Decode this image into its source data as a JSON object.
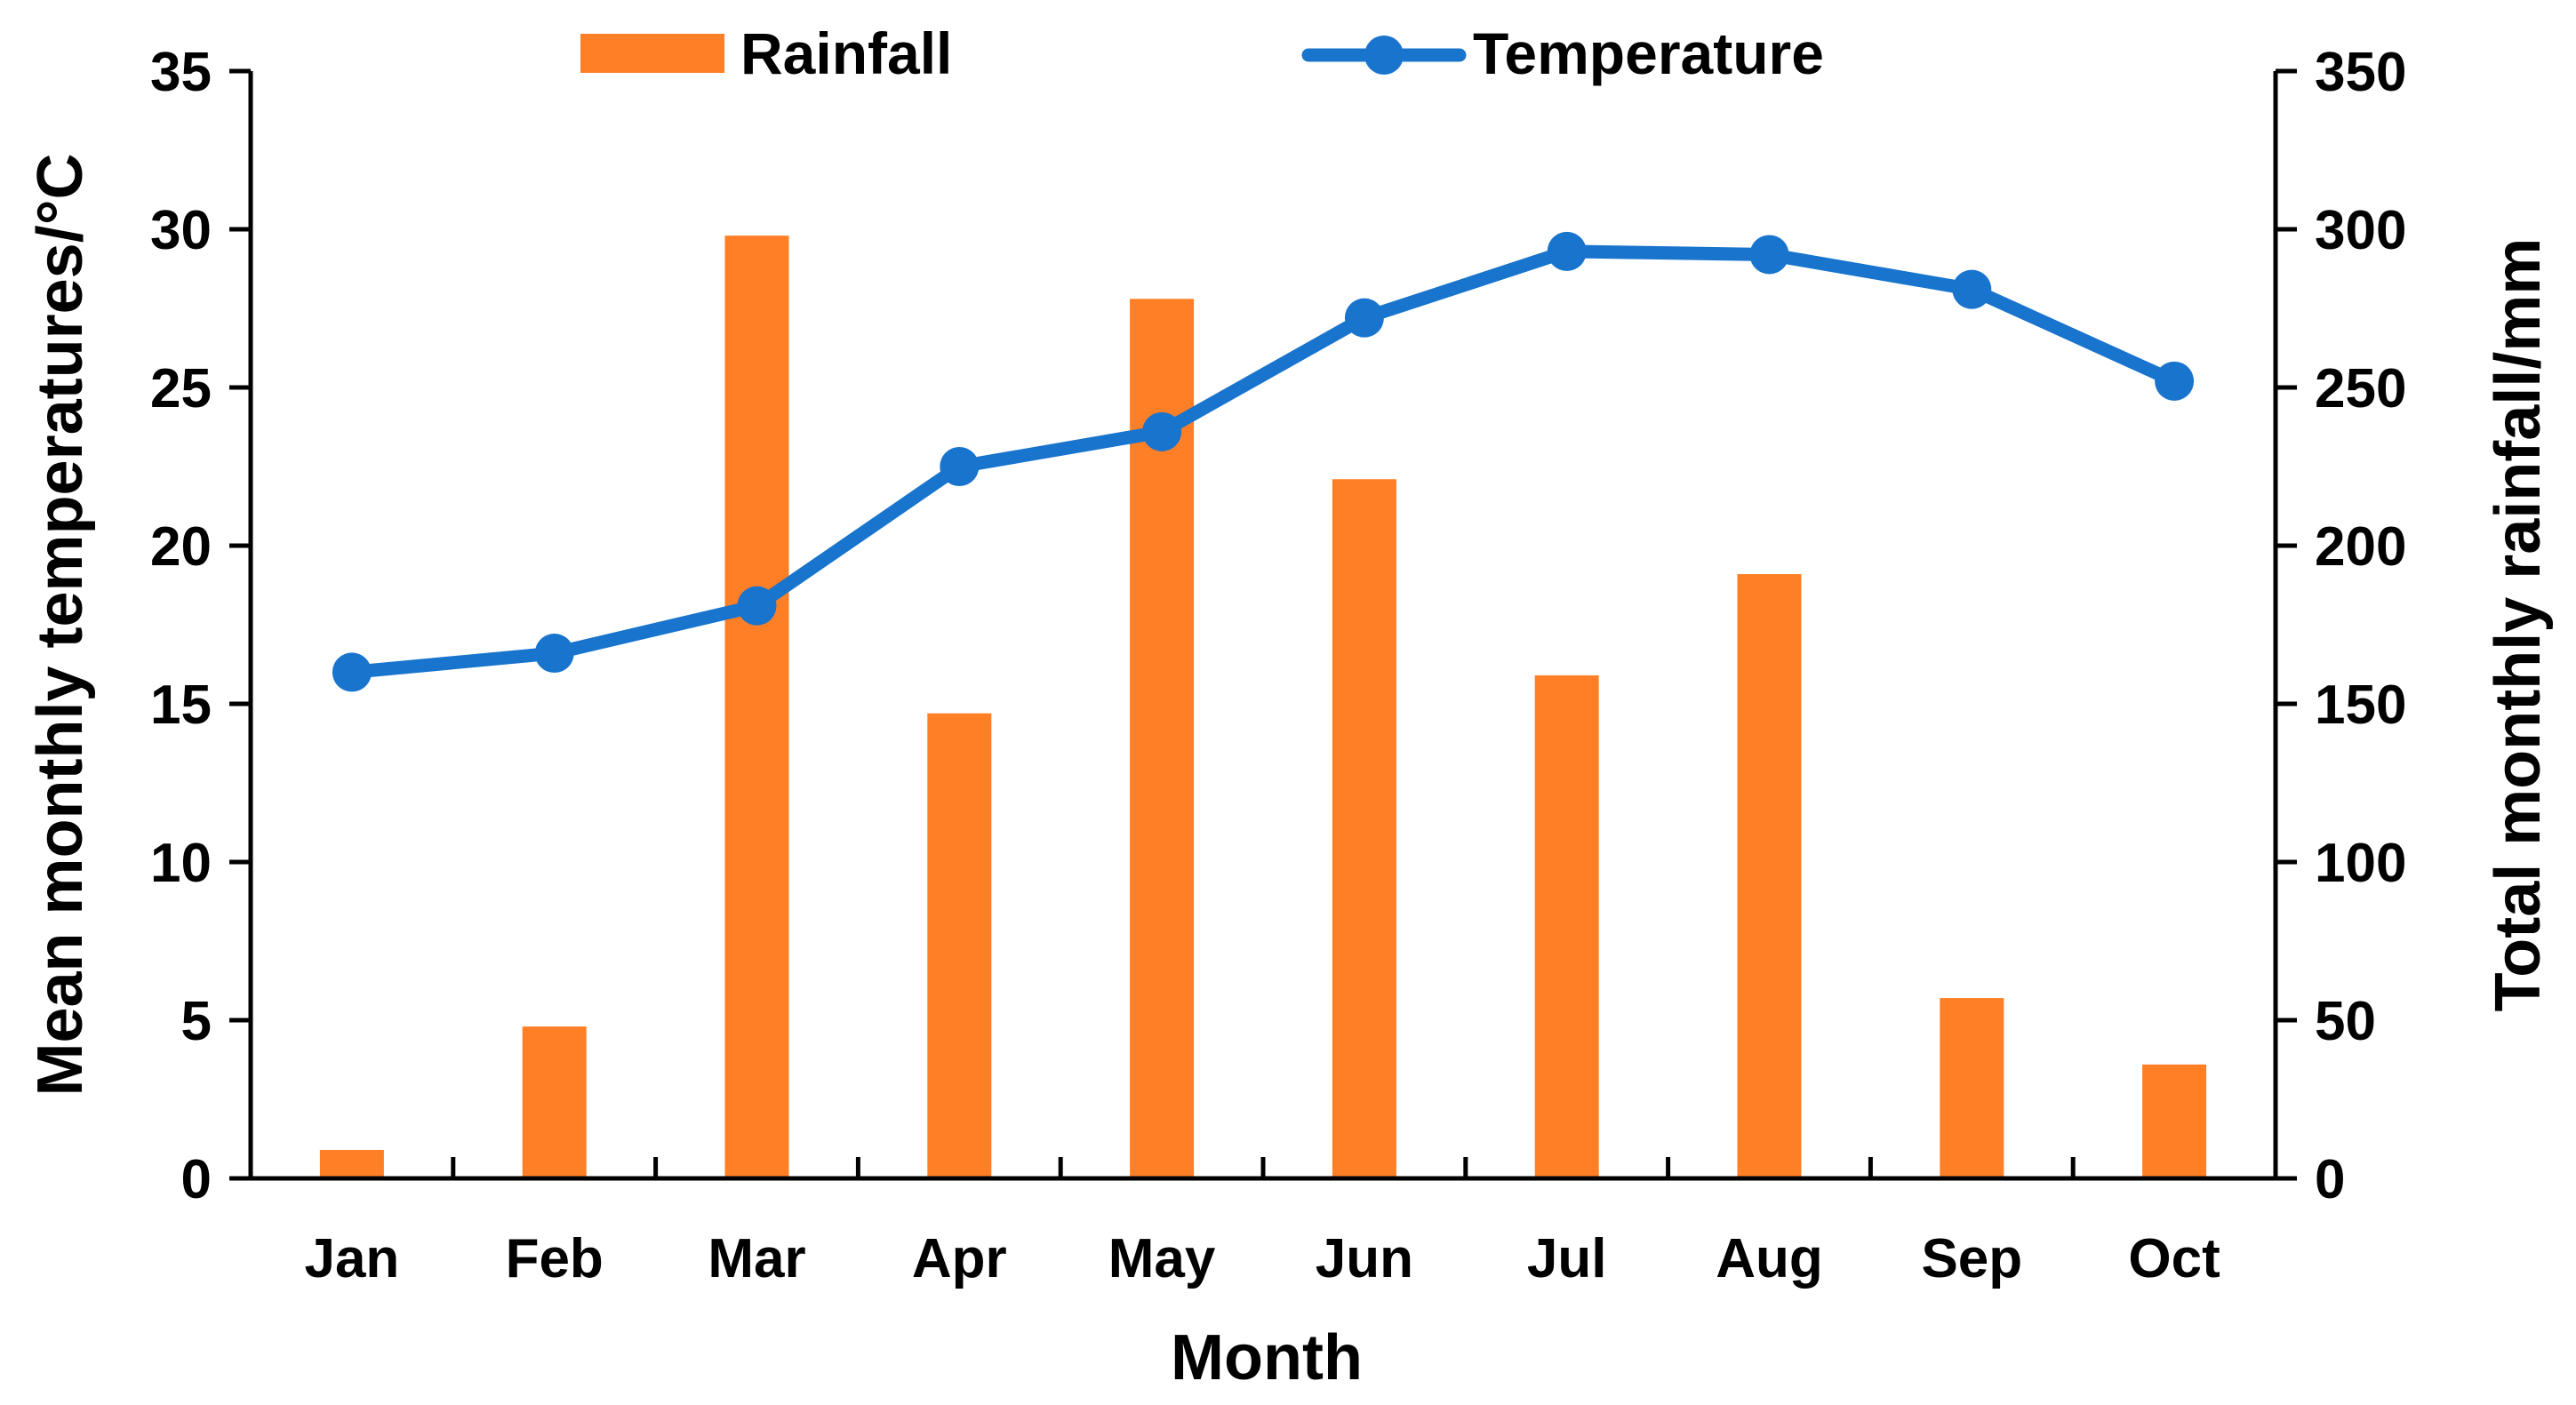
{
  "chart_data": {
    "type": "bar+line",
    "title": "",
    "categories": [
      "Jan",
      "Feb",
      "Mar",
      "Apr",
      "May",
      "Jun",
      "Jul",
      "Aug",
      "Sep",
      "Oct"
    ],
    "series": [
      {
        "name": "Rainfall",
        "type": "bar",
        "axis": "right",
        "color": "#FF7F27",
        "values": [
          9,
          48,
          298,
          147,
          278,
          221,
          159,
          191,
          57,
          36
        ]
      },
      {
        "name": "Temperature",
        "type": "line",
        "axis": "left",
        "color": "#1874CD",
        "values": [
          16.0,
          16.6,
          18.1,
          22.5,
          23.6,
          27.2,
          29.3,
          29.2,
          28.1,
          25.2
        ]
      }
    ],
    "xlabel": "Month",
    "ylabel_left": "Mean monthly temperatures/°C",
    "ylabel_right": "Total monthly  rainfall/mm",
    "ylim_left": [
      0,
      35
    ],
    "ylim_right": [
      0,
      350
    ],
    "yticks_left": [
      "0",
      "5",
      "10",
      "15",
      "20",
      "25",
      "30",
      "35"
    ],
    "yticks_right": [
      "0",
      "50",
      "100",
      "150",
      "200",
      "250",
      "300",
      "350"
    ],
    "legend_position": "top-center",
    "grid": false
  }
}
